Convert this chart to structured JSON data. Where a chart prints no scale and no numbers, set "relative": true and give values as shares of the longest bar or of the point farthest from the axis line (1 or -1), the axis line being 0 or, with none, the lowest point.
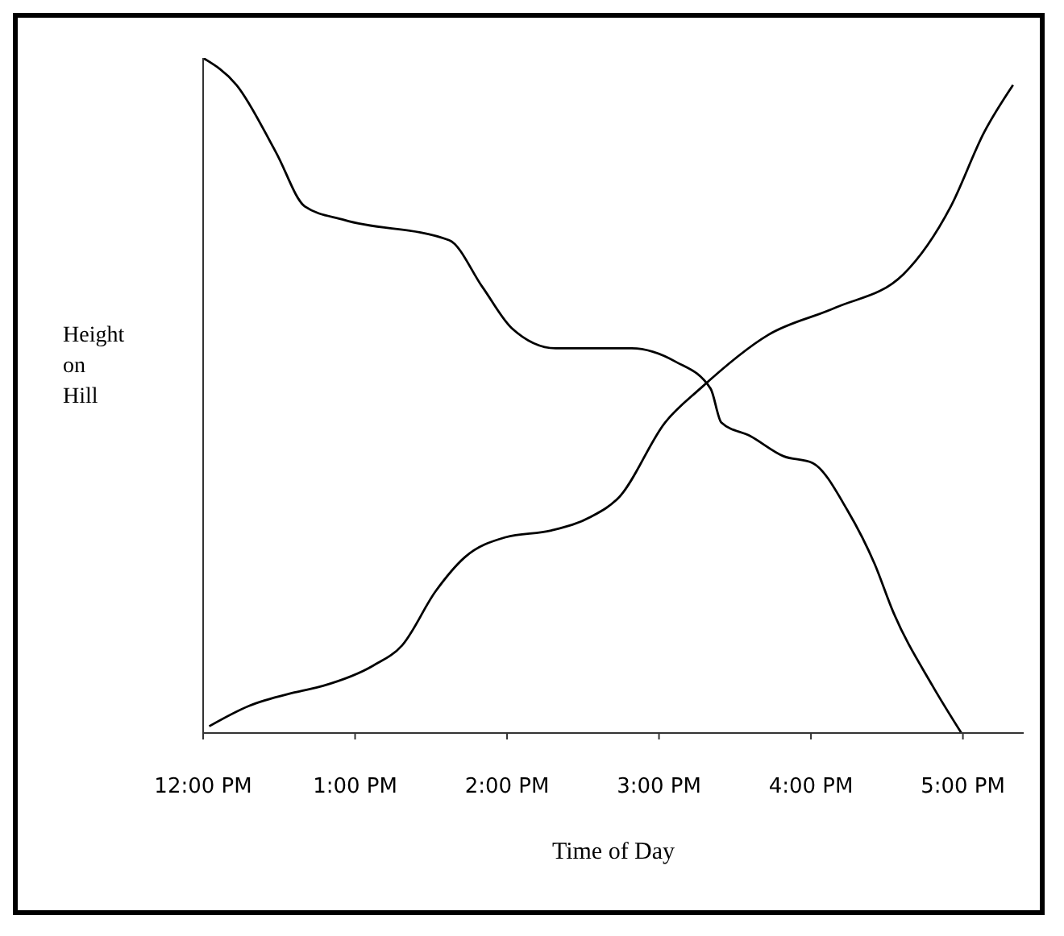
{
  "chart_data": {
    "type": "line",
    "xlabel": "Time of Day",
    "ylabel": "Height on Hill",
    "relative": true,
    "grid": false,
    "legend": false,
    "marker": "none",
    "line_style": "solid",
    "xlim": [
      12,
      17.4
    ],
    "xticks": [
      {
        "value": 12,
        "label": "12:00 PM"
      },
      {
        "value": 13,
        "label": "1:00 PM"
      },
      {
        "value": 14,
        "label": "2:00 PM"
      },
      {
        "value": 15,
        "label": "3:00 PM"
      },
      {
        "value": 16,
        "label": "4:00 PM"
      },
      {
        "value": 17,
        "label": "5:00 PM"
      }
    ],
    "series": [
      {
        "color": "#000000",
        "x": [
          12.0,
          12.22,
          12.48,
          12.67,
          12.93,
          13.62,
          13.84,
          14.03,
          14.32,
          14.82,
          15.11,
          15.34,
          15.41,
          15.6,
          15.82,
          16.01,
          16.24,
          16.42,
          16.54,
          16.8,
          16.99
        ],
        "values": [
          1.0,
          0.96,
          0.86,
          0.78,
          0.76,
          0.73,
          0.66,
          0.6,
          0.57,
          0.57,
          0.55,
          0.51,
          0.46,
          0.44,
          0.41,
          0.4,
          0.33,
          0.25,
          0.18,
          0.07,
          0.0
        ]
      },
      {
        "color": "#000000",
        "x": [
          12.04,
          12.3,
          12.6,
          12.79,
          13.12,
          13.31,
          13.53,
          13.72,
          13.99,
          14.29,
          14.55,
          14.74,
          15.04,
          15.27,
          15.72,
          16.16,
          16.61,
          16.92,
          17.14,
          17.33
        ],
        "values": [
          0.01,
          0.04,
          0.06,
          0.07,
          0.1,
          0.13,
          0.21,
          0.26,
          0.29,
          0.3,
          0.32,
          0.35,
          0.46,
          0.51,
          0.59,
          0.63,
          0.68,
          0.78,
          0.89,
          0.96
        ]
      }
    ]
  }
}
